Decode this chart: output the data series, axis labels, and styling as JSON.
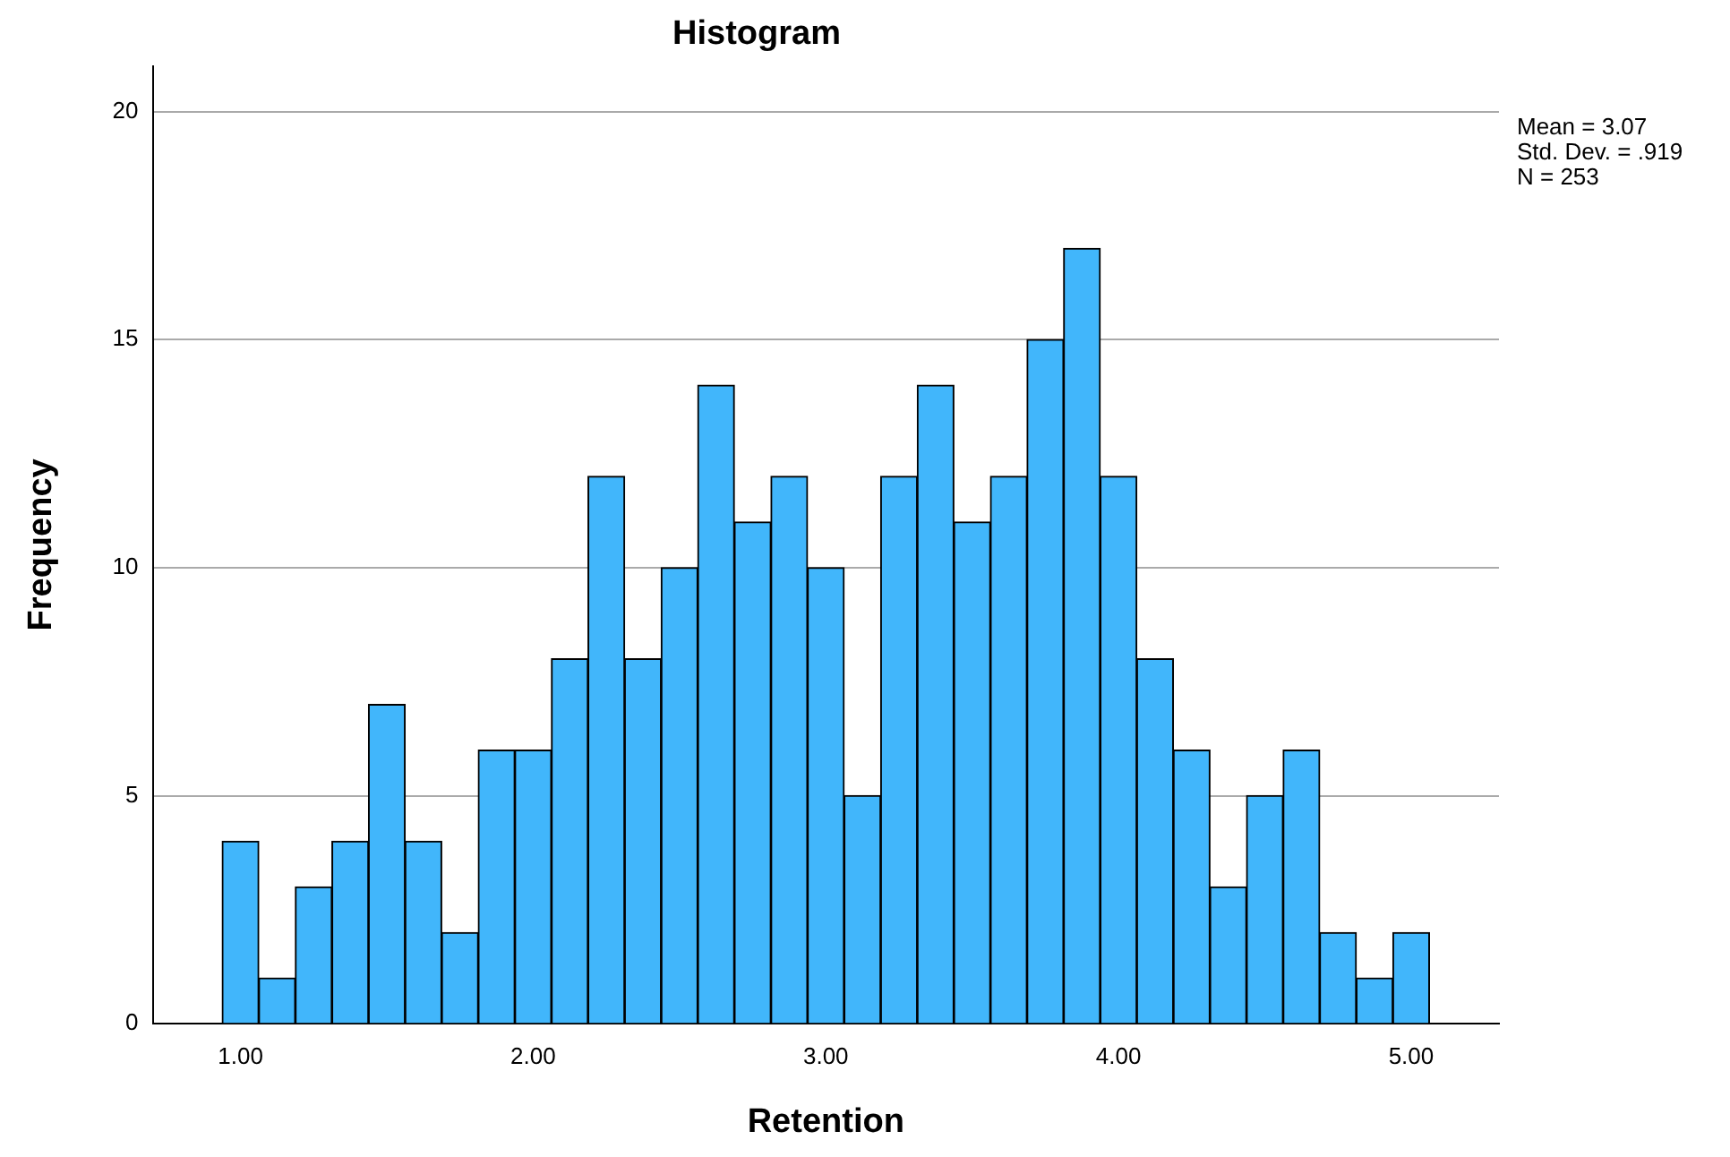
{
  "chart_data": {
    "type": "histogram",
    "title": "Histogram",
    "xlabel": "Retention",
    "ylabel": "Frequency",
    "bins": [
      0.9375,
      1.0625,
      1.1875,
      1.3125,
      1.4375,
      1.5625,
      1.6875,
      1.8125,
      1.9375,
      2.0625,
      2.1875,
      2.3125,
      2.4375,
      2.5625,
      2.6875,
      2.8125,
      2.9375,
      3.0625,
      3.1875,
      3.3125,
      3.4375,
      3.5625,
      3.6875,
      3.8125,
      3.9375,
      4.0625,
      4.1875,
      4.3125,
      4.4375,
      4.5625,
      4.6875,
      4.8125,
      4.9375,
      5.0625
    ],
    "values": [
      4,
      1,
      3,
      4,
      7,
      4,
      2,
      6,
      6,
      8,
      12,
      8,
      10,
      14,
      11,
      12,
      10,
      5,
      12,
      14,
      11,
      12,
      15,
      17,
      12,
      8,
      6,
      3,
      5,
      6,
      2,
      1,
      2
    ],
    "color": "#41b6fb",
    "xlim": [
      0.7,
      5.3
    ],
    "xticks": [
      {
        "value": 1,
        "label": "1.00"
      },
      {
        "value": 2,
        "label": "2.00"
      },
      {
        "value": 3,
        "label": "3.00"
      },
      {
        "value": 4,
        "label": "4.00"
      },
      {
        "value": 5,
        "label": "5.00"
      }
    ],
    "ylim": [
      0,
      21
    ],
    "yticks": [
      0,
      5,
      10,
      15,
      20
    ],
    "grid": "y",
    "annotations": [
      "Mean = 3.07",
      "Std. Dev. = .919",
      "N = 253"
    ]
  }
}
